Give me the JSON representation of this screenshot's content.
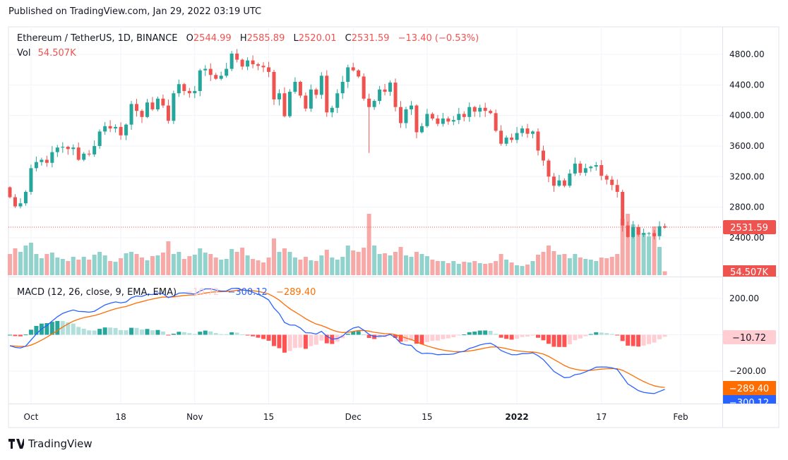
{
  "published": "Published on TradingView.com, Jan 29, 2022 03:19 UTC",
  "footer_logo": "TradingView",
  "legend": {
    "symbol": "Ethereum / TetherUS, 1D, BINANCE",
    "o_label": "O",
    "o": "2544.99",
    "h_label": "H",
    "h": "2585.89",
    "l_label": "L",
    "l": "2520.01",
    "c_label": "C",
    "c": "2531.59",
    "change": "−13.40 (−0.53%)",
    "vol_label": "Vol",
    "vol": "54.507K"
  },
  "macd_legend": {
    "title": "MACD (12, 26, close, 9, EMA, EMA)",
    "hist": "−10.72",
    "macd": "−300.12",
    "signal": "−289.40"
  },
  "price_axis": [
    "4800.00",
    "4400.00",
    "4000.00",
    "3600.00",
    "3200.00",
    "2800.00",
    "2400.00"
  ],
  "price_label": "2531.59",
  "volume_label": "54.507K",
  "macd_axis": [
    "200.00",
    "−200.00"
  ],
  "macd_labels": {
    "hist": "−10.72",
    "signal": "−289.40",
    "macd": "−300.12"
  },
  "colors": {
    "up": "#26a69a",
    "down": "#ef5350",
    "macd": "#2962ff",
    "signal": "#ff6d00"
  },
  "chart_data": {
    "type": "candlestick",
    "start_date": "2021-09-27",
    "interval": "1D",
    "first_open": 3060,
    "close": [
      2930,
      2810,
      2850,
      3000,
      3310,
      3390,
      3420,
      3380,
      3520,
      3580,
      3590,
      3560,
      3580,
      3420,
      3500,
      3490,
      3600,
      3790,
      3860,
      3830,
      3850,
      3740,
      3880,
      4150,
      4060,
      3980,
      4170,
      4080,
      4220,
      4130,
      3930,
      4290,
      4410,
      4320,
      4290,
      4320,
      4590,
      4610,
      4530,
      4480,
      4520,
      4610,
      4810,
      4730,
      4640,
      4720,
      4670,
      4650,
      4630,
      4570,
      4210,
      4290,
      3990,
      4310,
      4440,
      4260,
      4090,
      4340,
      4270,
      4520,
      4040,
      4100,
      4290,
      4440,
      4630,
      4590,
      4510,
      4220,
      4110,
      4190,
      4340,
      4310,
      4430,
      4110,
      3900,
      4080,
      4130,
      3780,
      3860,
      4020,
      3960,
      3890,
      3960,
      3920,
      3940,
      4020,
      3980,
      4110,
      4050,
      4100,
      4060,
      4030,
      3800,
      3630,
      3710,
      3680,
      3770,
      3830,
      3760,
      3790,
      3540,
      3410,
      3200,
      3080,
      3150,
      3080,
      3240,
      3370,
      3250,
      3310,
      3330,
      3350,
      3210,
      3160,
      3090,
      3000,
      2560,
      2410,
      2540,
      2440,
      2460,
      2460,
      2420,
      2550,
      2531.59
    ],
    "volume_k": [
      300,
      380,
      330,
      420,
      460,
      300,
      240,
      300,
      320,
      250,
      230,
      200,
      260,
      220,
      260,
      220,
      290,
      330,
      280,
      200,
      190,
      240,
      310,
      330,
      300,
      250,
      210,
      270,
      280,
      320,
      480,
      300,
      330,
      230,
      270,
      290,
      380,
      320,
      300,
      250,
      220,
      230,
      370,
      330,
      390,
      280,
      230,
      210,
      180,
      250,
      520,
      330,
      380,
      330,
      250,
      220,
      260,
      210,
      200,
      280,
      360,
      250,
      220,
      260,
      420,
      350,
      330,
      390,
      870,
      420,
      300,
      310,
      280,
      330,
      400,
      280,
      260,
      330,
      300,
      270,
      220,
      200,
      200,
      170,
      200,
      160,
      190,
      180,
      200,
      170,
      160,
      170,
      200,
      300,
      220,
      180,
      140,
      130,
      150,
      200,
      290,
      330,
      420,
      340,
      290,
      300,
      240,
      300,
      250,
      230,
      220,
      200,
      250,
      240,
      260,
      300,
      800,
      870,
      720,
      680,
      600,
      550,
      690,
      400,
      54.507
    ],
    "price_ticks": [
      4800,
      4400,
      4000,
      3600,
      3200,
      2800,
      2400
    ],
    "macd_ticks": [
      200,
      -200
    ],
    "time_labels": [
      {
        "label": "Oct",
        "index": 4
      },
      {
        "label": "18",
        "index": 21
      },
      {
        "label": "Nov",
        "index": 35
      },
      {
        "label": "15",
        "index": 49
      },
      {
        "label": "Dec",
        "index": 65
      },
      {
        "label": "15",
        "index": 79
      },
      {
        "label": "2022",
        "index": 96
      },
      {
        "label": "17",
        "index": 112
      },
      {
        "label": "Feb",
        "index": 127
      }
    ],
    "macd_params": {
      "fast": 12,
      "slow": 26,
      "signal": 9
    },
    "last_price": 2531.59
  }
}
